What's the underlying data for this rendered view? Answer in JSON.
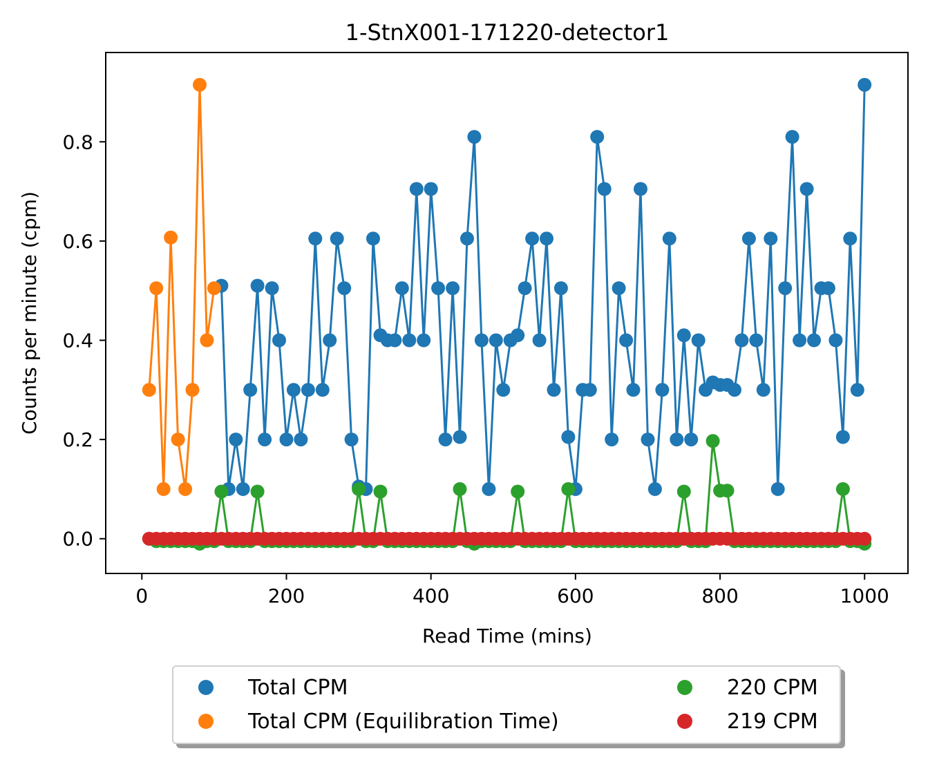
{
  "chart_data": {
    "type": "line",
    "title": "1-StnX001-171220-detector1",
    "xlabel": "Read Time (mins)",
    "ylabel": "Counts per minute (cpm)",
    "xlim": [
      -50,
      1060
    ],
    "ylim": [
      -0.07,
      0.98
    ],
    "xticks": [
      0,
      200,
      400,
      600,
      800,
      1000
    ],
    "xtick_labels": [
      "0",
      "200",
      "400",
      "600",
      "800",
      "1000"
    ],
    "yticks": [
      0.0,
      0.2,
      0.4,
      0.6,
      0.8
    ],
    "ytick_labels": [
      "0.0",
      "0.2",
      "0.4",
      "0.6",
      "0.8"
    ],
    "grid": false,
    "legend_position": "below",
    "series": [
      {
        "name": "Total CPM (Equilibration Time)",
        "color": "#ff7f0e",
        "x": [
          10,
          20,
          30,
          40,
          50,
          60,
          70,
          80,
          90,
          100
        ],
        "y": [
          0.3,
          0.505,
          0.1,
          0.607,
          0.2,
          0.1,
          0.3,
          0.915,
          0.4,
          0.505
        ]
      },
      {
        "name": "Total CPM",
        "color": "#1f77b4",
        "x": [
          110,
          120,
          130,
          140,
          150,
          160,
          170,
          180,
          190,
          200,
          210,
          220,
          230,
          240,
          250,
          260,
          270,
          280,
          290,
          300,
          310,
          320,
          330,
          340,
          350,
          360,
          370,
          380,
          390,
          400,
          410,
          420,
          430,
          440,
          450,
          460,
          470,
          480,
          490,
          500,
          510,
          520,
          530,
          540,
          550,
          560,
          570,
          580,
          590,
          600,
          610,
          620,
          630,
          640,
          650,
          660,
          670,
          680,
          690,
          700,
          710,
          720,
          730,
          740,
          750,
          760,
          770,
          780,
          790,
          800,
          810,
          820,
          830,
          840,
          850,
          860,
          870,
          880,
          890,
          900,
          910,
          920,
          930,
          940,
          950,
          960,
          970,
          980,
          990,
          1000
        ],
        "y": [
          0.51,
          0.1,
          0.2,
          0.1,
          0.3,
          0.51,
          0.2,
          0.505,
          0.4,
          0.2,
          0.3,
          0.2,
          0.3,
          0.605,
          0.3,
          0.4,
          0.605,
          0.505,
          0.2,
          0.105,
          0.1,
          0.605,
          0.41,
          0.4,
          0.4,
          0.505,
          0.4,
          0.705,
          0.4,
          0.705,
          0.505,
          0.2,
          0.505,
          0.205,
          0.605,
          0.81,
          0.4,
          0.1,
          0.4,
          0.3,
          0.4,
          0.41,
          0.505,
          0.605,
          0.4,
          0.605,
          0.3,
          0.505,
          0.205,
          0.1,
          0.3,
          0.3,
          0.81,
          0.705,
          0.2,
          0.505,
          0.4,
          0.3,
          0.705,
          0.2,
          0.1,
          0.3,
          0.605,
          0.2,
          0.41,
          0.2,
          0.4,
          0.3,
          0.315,
          0.31,
          0.31,
          0.3,
          0.4,
          0.605,
          0.4,
          0.3,
          0.605,
          0.1,
          0.505,
          0.81,
          0.4,
          0.705,
          0.4,
          0.505,
          0.505,
          0.4,
          0.205,
          0.605,
          0.3,
          0.915
        ]
      },
      {
        "name": "220 CPM",
        "color": "#2ca02c",
        "x": [
          10,
          20,
          30,
          40,
          50,
          60,
          70,
          80,
          90,
          100,
          110,
          120,
          130,
          140,
          150,
          160,
          170,
          180,
          190,
          200,
          210,
          220,
          230,
          240,
          250,
          260,
          270,
          280,
          290,
          300,
          310,
          320,
          330,
          340,
          350,
          360,
          370,
          380,
          390,
          400,
          410,
          420,
          430,
          440,
          450,
          460,
          470,
          480,
          490,
          500,
          510,
          520,
          530,
          540,
          550,
          560,
          570,
          580,
          590,
          600,
          610,
          620,
          630,
          640,
          650,
          660,
          670,
          680,
          690,
          700,
          710,
          720,
          730,
          740,
          750,
          760,
          770,
          780,
          790,
          800,
          810,
          820,
          830,
          840,
          850,
          860,
          870,
          880,
          890,
          900,
          910,
          920,
          930,
          940,
          950,
          960,
          970,
          980,
          990,
          1000
        ],
        "y": [
          0.0,
          -0.005,
          -0.005,
          -0.005,
          -0.005,
          -0.005,
          -0.005,
          -0.01,
          -0.005,
          -0.005,
          0.095,
          -0.005,
          -0.005,
          -0.005,
          -0.005,
          0.095,
          -0.005,
          -0.005,
          -0.005,
          -0.005,
          -0.005,
          -0.005,
          -0.005,
          -0.005,
          -0.005,
          -0.005,
          -0.005,
          -0.005,
          -0.005,
          0.1,
          -0.005,
          -0.005,
          0.095,
          -0.005,
          -0.005,
          -0.005,
          -0.005,
          -0.005,
          -0.005,
          -0.005,
          -0.005,
          -0.005,
          -0.005,
          0.1,
          -0.005,
          -0.01,
          -0.005,
          -0.005,
          -0.005,
          -0.005,
          -0.005,
          0.095,
          -0.005,
          -0.005,
          -0.005,
          -0.005,
          -0.005,
          -0.005,
          0.1,
          -0.005,
          -0.005,
          -0.005,
          -0.005,
          -0.005,
          -0.005,
          -0.005,
          -0.005,
          -0.005,
          -0.005,
          -0.005,
          -0.005,
          -0.005,
          -0.005,
          -0.005,
          0.095,
          -0.005,
          -0.005,
          -0.005,
          0.197,
          0.097,
          0.097,
          -0.005,
          -0.005,
          -0.005,
          -0.005,
          -0.005,
          -0.005,
          -0.005,
          -0.005,
          -0.005,
          -0.005,
          -0.005,
          -0.005,
          -0.005,
          -0.005,
          -0.005,
          0.1,
          -0.005,
          -0.005,
          -0.01
        ]
      },
      {
        "name": "219 CPM",
        "color": "#d62728",
        "x": [
          10,
          20,
          30,
          40,
          50,
          60,
          70,
          80,
          90,
          100,
          110,
          120,
          130,
          140,
          150,
          160,
          170,
          180,
          190,
          200,
          210,
          220,
          230,
          240,
          250,
          260,
          270,
          280,
          290,
          300,
          310,
          320,
          330,
          340,
          350,
          360,
          370,
          380,
          390,
          400,
          410,
          420,
          430,
          440,
          450,
          460,
          470,
          480,
          490,
          500,
          510,
          520,
          530,
          540,
          550,
          560,
          570,
          580,
          590,
          600,
          610,
          620,
          630,
          640,
          650,
          660,
          670,
          680,
          690,
          700,
          710,
          720,
          730,
          740,
          750,
          760,
          770,
          780,
          790,
          800,
          810,
          820,
          830,
          840,
          850,
          860,
          870,
          880,
          890,
          900,
          910,
          920,
          930,
          940,
          950,
          960,
          970,
          980,
          990,
          1000
        ],
        "y": [
          0.0,
          0.0,
          0.0,
          0.0,
          0.0,
          0.0,
          0.0,
          0.0,
          0.0,
          0.0,
          0.0,
          0.0,
          0.0,
          0.0,
          0.0,
          0.0,
          0.0,
          0.0,
          0.0,
          0.0,
          0.0,
          0.0,
          0.0,
          0.0,
          0.0,
          0.0,
          0.0,
          0.0,
          0.0,
          0.0,
          0.0,
          0.0,
          0.0,
          0.0,
          0.0,
          0.0,
          0.0,
          0.0,
          0.0,
          0.0,
          0.0,
          0.0,
          0.0,
          0.0,
          0.0,
          0.0,
          0.0,
          0.0,
          0.0,
          0.0,
          0.0,
          0.0,
          0.0,
          0.0,
          0.0,
          0.0,
          0.0,
          0.0,
          0.0,
          0.0,
          0.0,
          0.0,
          0.0,
          0.0,
          0.0,
          0.0,
          0.0,
          0.0,
          0.0,
          0.0,
          0.0,
          0.0,
          0.0,
          0.0,
          0.0,
          0.0,
          0.0,
          0.0,
          0.0,
          0.0,
          0.0,
          0.0,
          0.0,
          0.0,
          0.0,
          0.0,
          0.0,
          0.0,
          0.0,
          0.0,
          0.0,
          0.0,
          0.0,
          0.0,
          0.0,
          0.0,
          0.0,
          0.0,
          0.0,
          0.0
        ]
      }
    ],
    "legend": [
      {
        "label": "Total CPM",
        "color": "#1f77b4"
      },
      {
        "label": "Total CPM (Equilibration Time)",
        "color": "#ff7f0e"
      },
      {
        "label": "220 CPM",
        "color": "#2ca02c"
      },
      {
        "label": "219 CPM",
        "color": "#d62728"
      }
    ]
  }
}
